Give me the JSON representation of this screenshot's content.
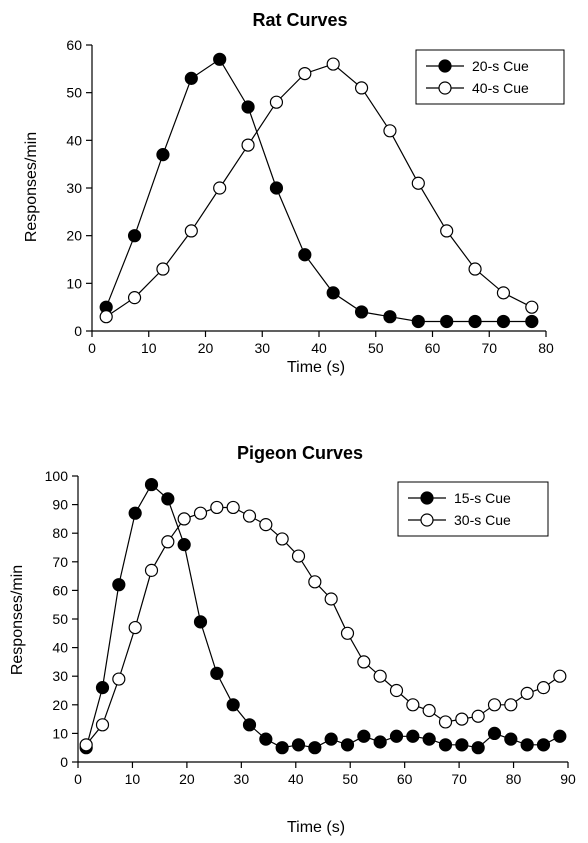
{
  "chart_data": [
    {
      "type": "line",
      "title": "Rat Curves",
      "xlabel": "Time (s)",
      "ylabel": "Responses/min",
      "xlim": [
        0,
        80
      ],
      "ylim": [
        0,
        60
      ],
      "xticks": [
        0,
        10,
        20,
        30,
        40,
        50,
        60,
        70,
        80
      ],
      "yticks": [
        0,
        10,
        20,
        30,
        40,
        50,
        60
      ],
      "grid": false,
      "legend_position": "top-right",
      "series": [
        {
          "name": "20-s Cue",
          "marker": "filled-circle",
          "points": [
            [
              2.5,
              5
            ],
            [
              7.5,
              20
            ],
            [
              12.5,
              37
            ],
            [
              17.5,
              53
            ],
            [
              22.5,
              57
            ],
            [
              27.5,
              47
            ],
            [
              32.5,
              30
            ],
            [
              37.5,
              16
            ],
            [
              42.5,
              8
            ],
            [
              47.5,
              4
            ],
            [
              52.5,
              3
            ],
            [
              57.5,
              2
            ],
            [
              62.5,
              2
            ],
            [
              67.5,
              2
            ],
            [
              72.5,
              2
            ],
            [
              77.5,
              2
            ]
          ]
        },
        {
          "name": "40-s Cue",
          "marker": "open-circle",
          "points": [
            [
              2.5,
              3
            ],
            [
              7.5,
              7
            ],
            [
              12.5,
              13
            ],
            [
              17.5,
              21
            ],
            [
              22.5,
              30
            ],
            [
              27.5,
              39
            ],
            [
              32.5,
              48
            ],
            [
              37.5,
              54
            ],
            [
              42.5,
              56
            ],
            [
              47.5,
              51
            ],
            [
              52.5,
              42
            ],
            [
              57.5,
              31
            ],
            [
              62.5,
              21
            ],
            [
              67.5,
              13
            ],
            [
              72.5,
              8
            ],
            [
              77.5,
              5
            ]
          ]
        }
      ]
    },
    {
      "type": "line",
      "title": "Pigeon Curves",
      "xlabel": "Time (s)",
      "ylabel": "Responses/min",
      "xlim": [
        0,
        90
      ],
      "ylim": [
        0,
        100
      ],
      "xticks": [
        0,
        10,
        20,
        30,
        40,
        50,
        60,
        70,
        80,
        90
      ],
      "yticks": [
        0,
        10,
        20,
        30,
        40,
        50,
        60,
        70,
        80,
        90,
        100
      ],
      "grid": false,
      "legend_position": "top-right",
      "series": [
        {
          "name": "15-s Cue",
          "marker": "filled-circle",
          "points": [
            [
              1.5,
              5
            ],
            [
              4.5,
              26
            ],
            [
              7.5,
              62
            ],
            [
              10.5,
              87
            ],
            [
              13.5,
              97
            ],
            [
              16.5,
              92
            ],
            [
              19.5,
              76
            ],
            [
              22.5,
              49
            ],
            [
              25.5,
              31
            ],
            [
              28.5,
              20
            ],
            [
              31.5,
              13
            ],
            [
              34.5,
              8
            ],
            [
              37.5,
              5
            ],
            [
              40.5,
              6
            ],
            [
              43.5,
              5
            ],
            [
              46.5,
              8
            ],
            [
              49.5,
              6
            ],
            [
              52.5,
              9
            ],
            [
              55.5,
              7
            ],
            [
              58.5,
              9
            ],
            [
              61.5,
              9
            ],
            [
              64.5,
              8
            ],
            [
              67.5,
              6
            ],
            [
              70.5,
              6
            ],
            [
              73.5,
              5
            ],
            [
              76.5,
              10
            ],
            [
              79.5,
              8
            ],
            [
              82.5,
              6
            ],
            [
              85.5,
              6
            ],
            [
              88.5,
              9
            ]
          ]
        },
        {
          "name": "30-s Cue",
          "marker": "open-circle",
          "points": [
            [
              1.5,
              6
            ],
            [
              4.5,
              13
            ],
            [
              7.5,
              29
            ],
            [
              10.5,
              47
            ],
            [
              13.5,
              67
            ],
            [
              16.5,
              77
            ],
            [
              19.5,
              85
            ],
            [
              22.5,
              87
            ],
            [
              25.5,
              89
            ],
            [
              28.5,
              89
            ],
            [
              31.5,
              86
            ],
            [
              34.5,
              83
            ],
            [
              37.5,
              78
            ],
            [
              40.5,
              72
            ],
            [
              43.5,
              63
            ],
            [
              46.5,
              57
            ],
            [
              49.5,
              45
            ],
            [
              52.5,
              35
            ],
            [
              55.5,
              30
            ],
            [
              58.5,
              25
            ],
            [
              61.5,
              20
            ],
            [
              64.5,
              18
            ],
            [
              67.5,
              14
            ],
            [
              70.5,
              15
            ],
            [
              73.5,
              16
            ],
            [
              76.5,
              20
            ],
            [
              79.5,
              20
            ],
            [
              82.5,
              24
            ],
            [
              85.5,
              26
            ],
            [
              88.5,
              30
            ]
          ]
        }
      ]
    }
  ]
}
